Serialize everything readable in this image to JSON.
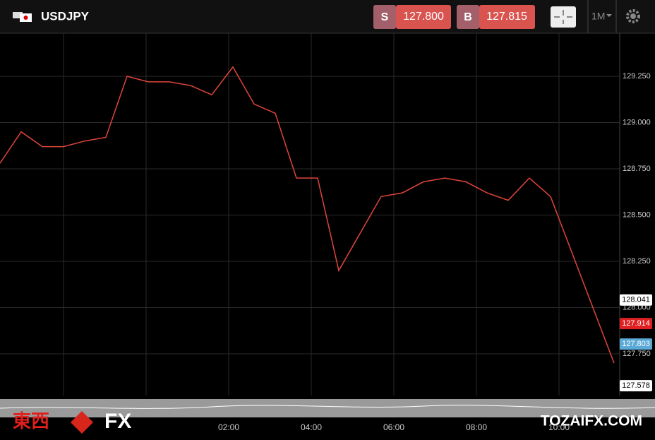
{
  "header": {
    "symbol": "USDJPY",
    "sell": {
      "label": "S",
      "price": "127.800"
    },
    "buy": {
      "label": "B",
      "price": "127.815"
    },
    "timeframe": "1M"
  },
  "chart_data": {
    "type": "line",
    "series": [
      {
        "color": "#e0453a",
        "values": [
          128.78,
          128.95,
          128.87,
          128.87,
          128.9,
          128.92,
          129.25,
          129.22,
          129.22,
          129.2,
          129.15,
          129.3,
          129.1,
          129.05,
          128.7,
          128.7,
          128.2,
          128.4,
          128.6,
          128.62,
          128.68,
          128.7,
          128.68,
          128.62,
          128.58,
          128.7,
          128.6,
          128.3,
          128.0,
          127.7
        ]
      }
    ],
    "ylim": [
      127.525,
      129.483
    ],
    "yticks": [
      {
        "value": 127.75,
        "label": "127.750"
      },
      {
        "value": 128,
        "label": "128.000"
      },
      {
        "value": 128.25,
        "label": "128.250"
      },
      {
        "value": 128.5,
        "label": "128.500"
      },
      {
        "value": 128.75,
        "label": "128.750"
      },
      {
        "value": 129,
        "label": "129.000"
      },
      {
        "value": 129.25,
        "label": "129.250"
      }
    ],
    "xticks": [
      "02:00",
      "04:00",
      "06:00",
      "08:00",
      "10:00"
    ],
    "price_labels": [
      {
        "value": 128.041,
        "color": "#ffffff"
      },
      {
        "value": 127.914,
        "color": "#e02020"
      },
      {
        "value": 127.803,
        "color": "#5aa9d6"
      },
      {
        "value": 127.578,
        "color": "#ffffff"
      }
    ],
    "grid": true
  },
  "watermark": {
    "kanji": "東西",
    "fx": "FX",
    "site": "TOZAIFX.COM"
  }
}
